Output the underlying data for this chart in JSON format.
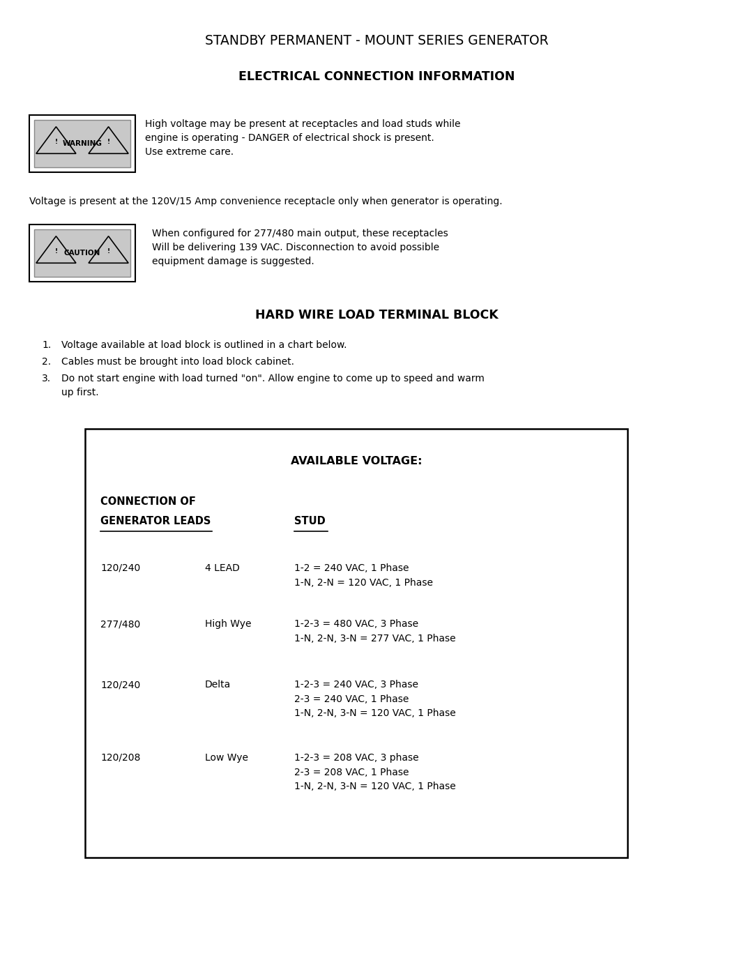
{
  "bg_color": "#ffffff",
  "title": "STANDBY PERMANENT - MOUNT SERIES GENERATOR",
  "section_title": "ELECTRICAL CONNECTION INFORMATION",
  "warning_text": "High voltage may be present at receptacles and load studs while\nengine is operating - DANGER of electrical shock is present.\nUse extreme care.",
  "voltage_text": "Voltage is present at the 120V/15 Amp convenience receptacle only when generator is operating.",
  "caution_text": "When configured for 277/480 main output, these receptacles\nWill be delivering 139 VAC. Disconnection to avoid possible\nequipment damage is suggested.",
  "hwlt_title": "HARD WIRE LOAD TERMINAL BLOCK",
  "list_items": [
    "Voltage available at load block is outlined in a chart below.",
    "Cables must be brought into load block cabinet.",
    "Do not start engine with load turned \"on\". Allow engine to come up to speed and warm\nup first."
  ],
  "table_title": "AVAILABLE VOLTAGE:",
  "col_header1a": "CONNECTION OF",
  "col_header1b": "GENERATOR LEADS",
  "col_header2": "STUD",
  "rows": [
    {
      "voltage": "120/240",
      "config": "4 LEAD",
      "stud": "1-2 = 240 VAC, 1 Phase\n1-N, 2-N = 120 VAC, 1 Phase"
    },
    {
      "voltage": "277/480",
      "config": "High Wye",
      "stud": "1-2-3 = 480 VAC, 3 Phase\n1-N, 2-N, 3-N = 277 VAC, 1 Phase"
    },
    {
      "voltage": "120/240",
      "config": "Delta",
      "stud": "1-2-3 = 240 VAC, 3 Phase\n2-3 = 240 VAC, 1 Phase\n1-N, 2-N, 3-N = 120 VAC, 1 Phase"
    },
    {
      "voltage": "120/208",
      "config": "Low Wye",
      "stud": "1-2-3 = 208 VAC, 3 phase\n2-3 = 208 VAC, 1 Phase\n1-N, 2-N, 3-N = 120 VAC, 1 Phase"
    }
  ],
  "fig_width": 10.8,
  "fig_height": 13.97,
  "dpi": 100
}
